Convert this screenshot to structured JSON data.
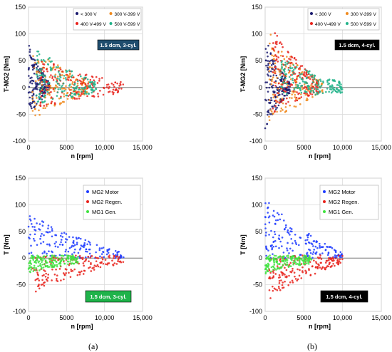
{
  "captions": {
    "left": "(a)",
    "right": "(b)"
  },
  "colors": {
    "v_lt300": "#1a1a6e",
    "v_300_399": "#f08a1e",
    "v_400_499": "#e8221b",
    "v_500_599": "#22b38a",
    "mg2_motor": "#1f3cff",
    "mg2_regen": "#e8221b",
    "mg1_gen": "#3fe23f",
    "box_dark_blue": "#1f4d6e",
    "box_black": "#000000",
    "box_green": "#1fb34a"
  },
  "chart_data": [
    {
      "id": "top-left",
      "type": "scatter",
      "xlabel": "n [rpm]",
      "ylabel": "T-MG2 [Nm]",
      "xlim": [
        0,
        15000
      ],
      "ylim": [
        -100,
        150
      ],
      "xticks": [
        "0",
        "5000",
        "10,000",
        "15,000"
      ],
      "yticks": [
        "-100",
        "-50",
        "0",
        "50",
        "100",
        "150"
      ],
      "grid": true,
      "legend_position": "top-right",
      "annotation": {
        "text": "1.5 dcm, 3-cyl.",
        "style": "box_dark_blue"
      },
      "series": [
        {
          "name": "< 300 V",
          "color": "v_lt300",
          "x_range": [
            0,
            2800
          ],
          "y_range": [
            -55,
            85
          ]
        },
        {
          "name": "300 V-399 V",
          "color": "v_300_399",
          "x_range": [
            500,
            8000
          ],
          "y_range": [
            -65,
            85
          ]
        },
        {
          "name": "400 V-499 V",
          "color": "v_400_499",
          "x_range": [
            1500,
            12500
          ],
          "y_range": [
            -40,
            60
          ]
        },
        {
          "name": "500 V-599 V",
          "color": "v_500_599",
          "x_range": [
            1000,
            9000
          ],
          "y_range": [
            -35,
            80
          ]
        }
      ]
    },
    {
      "id": "top-right",
      "type": "scatter",
      "xlabel": "n [rpm]",
      "ylabel": "T-MG2 [Nm]",
      "xlim": [
        0,
        15000
      ],
      "ylim": [
        -100,
        150
      ],
      "xticks": [
        "0",
        "5000",
        "10,000",
        "15,000"
      ],
      "yticks": [
        "-100",
        "-50",
        "0",
        "50",
        "100",
        "150"
      ],
      "grid": true,
      "legend_position": "top-right",
      "annotation": {
        "text": "1.5 dcm, 4-cyl.",
        "style": "box_black"
      },
      "series": [
        {
          "name": "< 300 V",
          "color": "v_lt300",
          "x_range": [
            0,
            3200
          ],
          "y_range": [
            -80,
            100
          ]
        },
        {
          "name": "300 V-399 V",
          "color": "v_300_399",
          "x_range": [
            500,
            7500
          ],
          "y_range": [
            -80,
            110
          ]
        },
        {
          "name": "400 V-499 V",
          "color": "v_400_499",
          "x_range": [
            1000,
            7000
          ],
          "y_range": [
            -50,
            120
          ]
        },
        {
          "name": "500 V-599 V",
          "color": "v_500_599",
          "x_range": [
            2000,
            10000
          ],
          "y_range": [
            -20,
            60
          ]
        }
      ]
    },
    {
      "id": "bottom-left",
      "type": "scatter",
      "xlabel": "n [rpm]",
      "ylabel": "T [Nm]",
      "xlim": [
        0,
        15000
      ],
      "ylim": [
        -100,
        150
      ],
      "xticks": [
        "0",
        "5000",
        "10,000",
        "15,000"
      ],
      "yticks": [
        "-100",
        "-50",
        "0",
        "50",
        "100",
        "150"
      ],
      "grid": true,
      "legend_position": "top-right",
      "annotation": {
        "text": "1.5 dcm, 3-cyl.",
        "style": "box_green"
      },
      "series": [
        {
          "name": "MG2 Motor",
          "color": "mg2_motor",
          "x_range": [
            0,
            12500
          ],
          "y_range": [
            0,
            90
          ]
        },
        {
          "name": "MG2 Regen.",
          "color": "mg2_regen",
          "x_range": [
            500,
            12500
          ],
          "y_range": [
            -70,
            5
          ]
        },
        {
          "name": "MG1 Gen.",
          "color": "mg1_gen",
          "x_range": [
            0,
            6500
          ],
          "y_range": [
            -30,
            5
          ]
        }
      ]
    },
    {
      "id": "bottom-right",
      "type": "scatter",
      "xlabel": "n [rpm]",
      "ylabel": "T [Nm]",
      "xlim": [
        0,
        15000
      ],
      "ylim": [
        -100,
        150
      ],
      "xticks": [
        "0",
        "5000",
        "10,000",
        "15,000"
      ],
      "yticks": [
        "-100",
        "-50",
        "0",
        "50",
        "100",
        "150"
      ],
      "grid": true,
      "legend_position": "top-right",
      "annotation": {
        "text": "1.5 dcm, 4-cyl.",
        "style": "box_black"
      },
      "series": [
        {
          "name": "MG2 Motor",
          "color": "mg2_motor",
          "x_range": [
            0,
            10000
          ],
          "y_range": [
            0,
            120
          ]
        },
        {
          "name": "MG2 Regen.",
          "color": "mg2_regen",
          "x_range": [
            500,
            10000
          ],
          "y_range": [
            -80,
            5
          ]
        },
        {
          "name": "MG1 Gen.",
          "color": "mg1_gen",
          "x_range": [
            0,
            6000
          ],
          "y_range": [
            -30,
            5
          ]
        }
      ]
    }
  ]
}
